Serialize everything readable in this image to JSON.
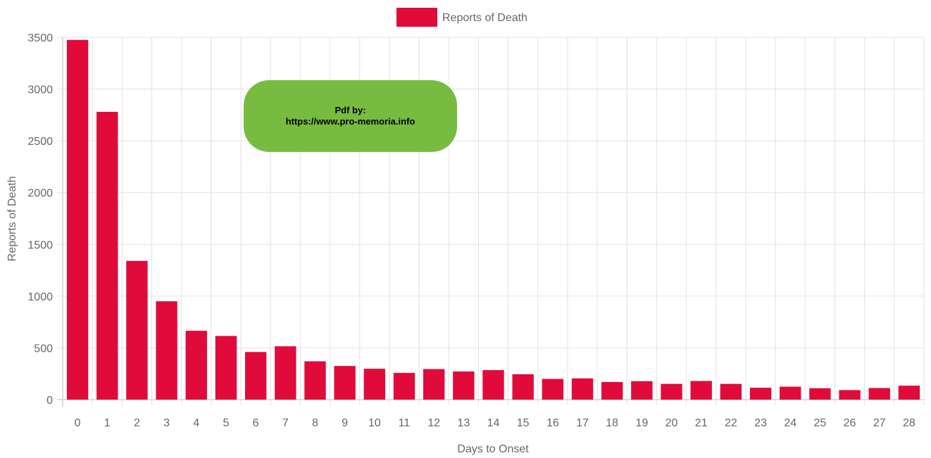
{
  "chart_data": {
    "type": "bar",
    "xlabel": "Days to Onset",
    "ylabel": "Reports of Death",
    "ylim": [
      0,
      3500
    ],
    "yticks": [
      "0",
      "500",
      "1000",
      "1500",
      "2000",
      "2500",
      "3000",
      "3500"
    ],
    "categories": [
      "0",
      "1",
      "2",
      "3",
      "4",
      "5",
      "6",
      "7",
      "8",
      "9",
      "10",
      "11",
      "12",
      "13",
      "14",
      "15",
      "16",
      "17",
      "18",
      "19",
      "20",
      "21",
      "22",
      "23",
      "24",
      "25",
      "26",
      "27",
      "28"
    ],
    "series": [
      {
        "name": "Reports of Death",
        "color": "#e00b3a",
        "values": [
          3475,
          2780,
          1340,
          950,
          665,
          615,
          460,
          515,
          370,
          325,
          298,
          258,
          295,
          272,
          285,
          245,
          200,
          205,
          170,
          178,
          152,
          180,
          152,
          115,
          125,
          110,
          92,
          112,
          135
        ]
      }
    ],
    "grid": true,
    "legend_position": "top-center"
  },
  "watermark": {
    "line1": "Pdf by:",
    "line2": "https://www.pro-memoria.info",
    "color": "#77bb41"
  }
}
